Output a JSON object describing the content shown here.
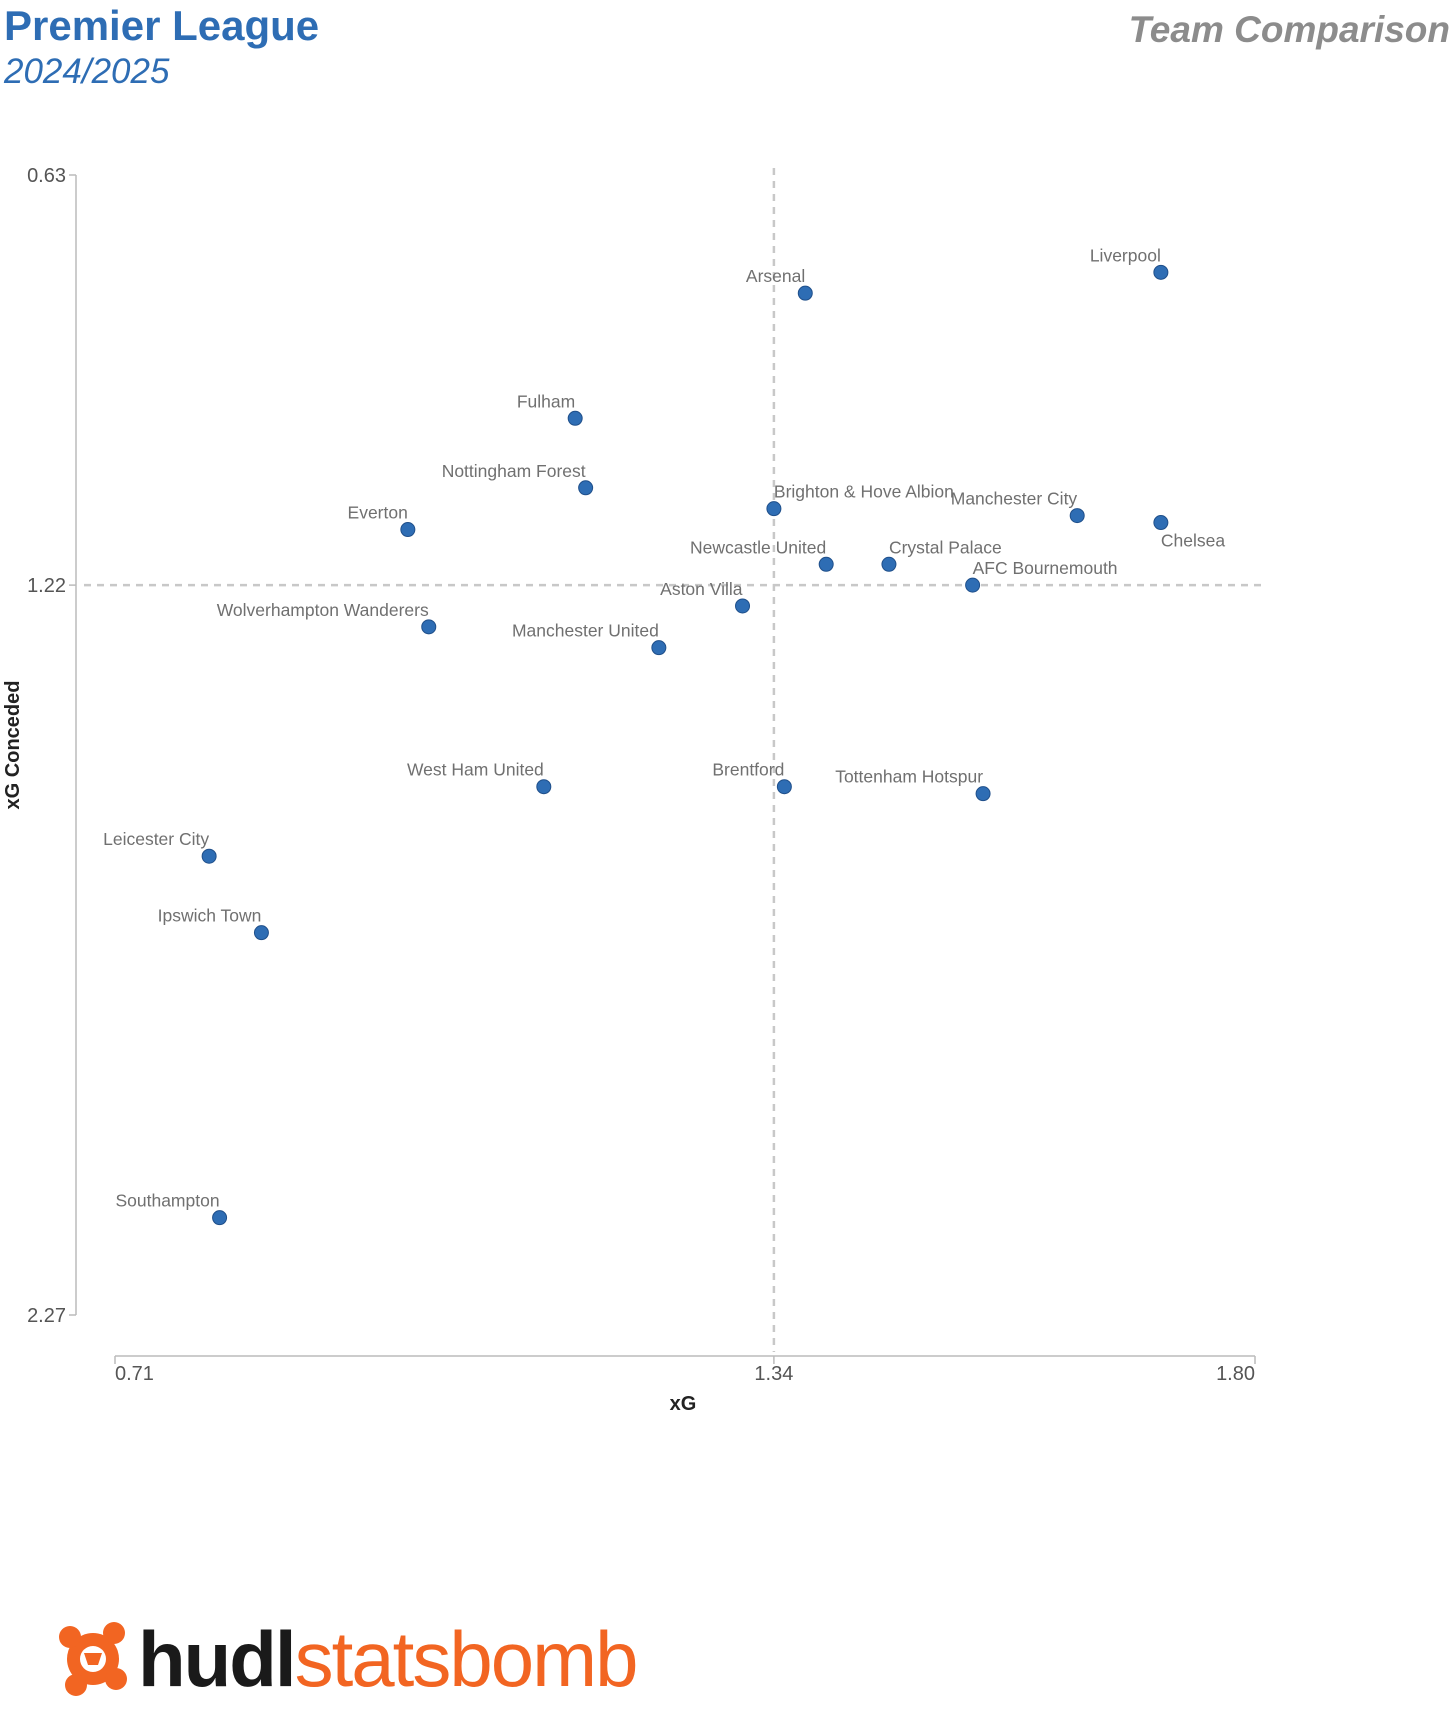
{
  "header": {
    "title": "Premier League",
    "subtitle": "2024/2025",
    "right_title": "Team Comparison"
  },
  "colors": {
    "accent": "#2e6db4",
    "point": "#2e6db4",
    "guide": "#c8c8c8",
    "logo_orange": "#f26522"
  },
  "logo": {
    "icon": "statsbomb-logo-icon",
    "text_bold": "hudl",
    "text_light": "statsbomb"
  },
  "chart_data": {
    "type": "scatter",
    "xlabel": "xG",
    "ylabel": "xG Conceded",
    "x_ticks": [
      "0.71",
      "1.34",
      "1.80"
    ],
    "y_ticks": [
      "0.63",
      "1.22",
      "2.27"
    ],
    "xlim": [
      0.71,
      1.8
    ],
    "ylim": [
      0.63,
      2.27
    ],
    "y_inverted": true,
    "reference_lines": {
      "x": 1.34,
      "y": 1.22
    },
    "grid": false,
    "points": [
      {
        "label": "Liverpool",
        "x": 1.71,
        "y": 0.77
      },
      {
        "label": "Arsenal",
        "x": 1.37,
        "y": 0.8
      },
      {
        "label": "Fulham",
        "x": 1.15,
        "y": 0.98
      },
      {
        "label": "Nottingham Forest",
        "x": 1.16,
        "y": 1.08
      },
      {
        "label": "Everton",
        "x": 0.99,
        "y": 1.14
      },
      {
        "label": "Brighton & Hove Albion",
        "x": 1.34,
        "y": 1.11
      },
      {
        "label": "Manchester City",
        "x": 1.63,
        "y": 1.12
      },
      {
        "label": "Chelsea",
        "x": 1.71,
        "y": 1.13
      },
      {
        "label": "Newcastle United",
        "x": 1.39,
        "y": 1.19
      },
      {
        "label": "Crystal Palace",
        "x": 1.45,
        "y": 1.19
      },
      {
        "label": "AFC Bournemouth",
        "x": 1.53,
        "y": 1.22
      },
      {
        "label": "Aston Villa",
        "x": 1.31,
        "y": 1.25
      },
      {
        "label": "Wolverhampton Wanderers",
        "x": 1.01,
        "y": 1.28
      },
      {
        "label": "Manchester United",
        "x": 1.23,
        "y": 1.31
      },
      {
        "label": "West Ham United",
        "x": 1.12,
        "y": 1.51
      },
      {
        "label": "Brentford",
        "x": 1.35,
        "y": 1.51
      },
      {
        "label": "Tottenham Hotspur",
        "x": 1.54,
        "y": 1.52
      },
      {
        "label": "Leicester City",
        "x": 0.8,
        "y": 1.61
      },
      {
        "label": "Ipswich Town",
        "x": 0.85,
        "y": 1.72
      },
      {
        "label": "Southampton",
        "x": 0.81,
        "y": 2.13
      }
    ]
  }
}
